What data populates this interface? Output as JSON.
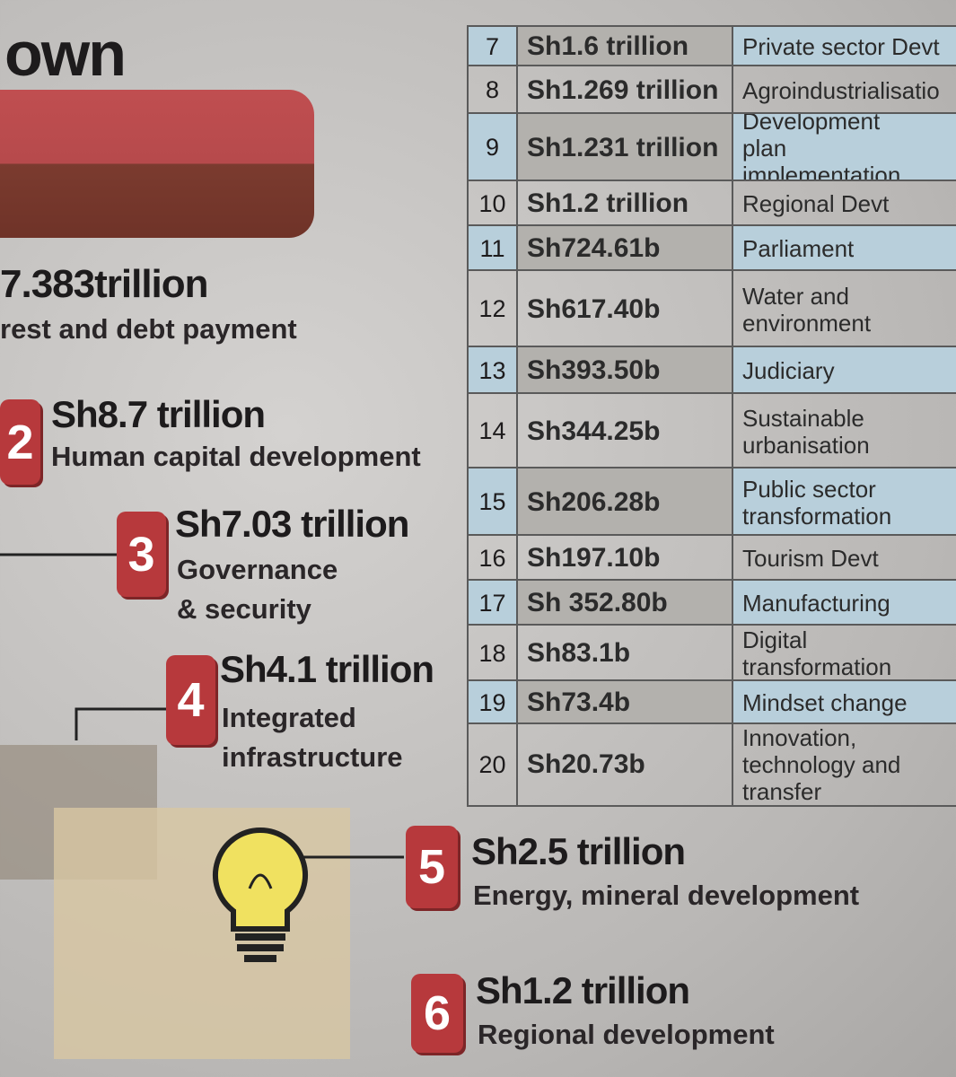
{
  "heading": "own",
  "lead": {
    "amount": "7.383trillion",
    "label": "rest and debt payment"
  },
  "items": [
    {
      "rank": "2",
      "amount": "Sh8.7 trillion",
      "label": "Human capital development"
    },
    {
      "rank": "3",
      "amount": "Sh7.03 trillion",
      "label": "Governance\n& security"
    },
    {
      "rank": "4",
      "amount": "Sh4.1 trillion",
      "label": "Integrated\ninfrastructure"
    },
    {
      "rank": "5",
      "amount": "Sh2.5 trillion",
      "label": "Energy, mineral development"
    },
    {
      "rank": "6",
      "amount": "Sh1.2 trillion",
      "label": "Regional development"
    }
  ],
  "table": {
    "rows": [
      [
        "7",
        "Sh1.6 trillion",
        "Private sector Devt"
      ],
      [
        "8",
        "Sh1.269 trillion",
        "Agroindustrialisatio"
      ],
      [
        "9",
        "Sh1.231 trillion",
        "Development plan implementation"
      ],
      [
        "10",
        "Sh1.2 trillion",
        "Regional Devt"
      ],
      [
        "11",
        "Sh724.61b",
        "Parliament"
      ],
      [
        "12",
        "Sh617.40b",
        "Water and environment"
      ],
      [
        "13",
        "Sh393.50b",
        "Judiciary"
      ],
      [
        "14",
        "Sh344.25b",
        "Sustainable urbanisation"
      ],
      [
        "15",
        "Sh206.28b",
        "Public sector transformation"
      ],
      [
        "16",
        "Sh197.10b",
        "Tourism Devt"
      ],
      [
        "17",
        "Sh 352.80b",
        "Manufacturing"
      ],
      [
        "18",
        "Sh83.1b",
        "Digital transformation"
      ],
      [
        "19",
        "Sh73.4b",
        "Mindset change"
      ],
      [
        "20",
        "Sh20.73b",
        "Innovation, technology and transfer"
      ]
    ]
  }
}
